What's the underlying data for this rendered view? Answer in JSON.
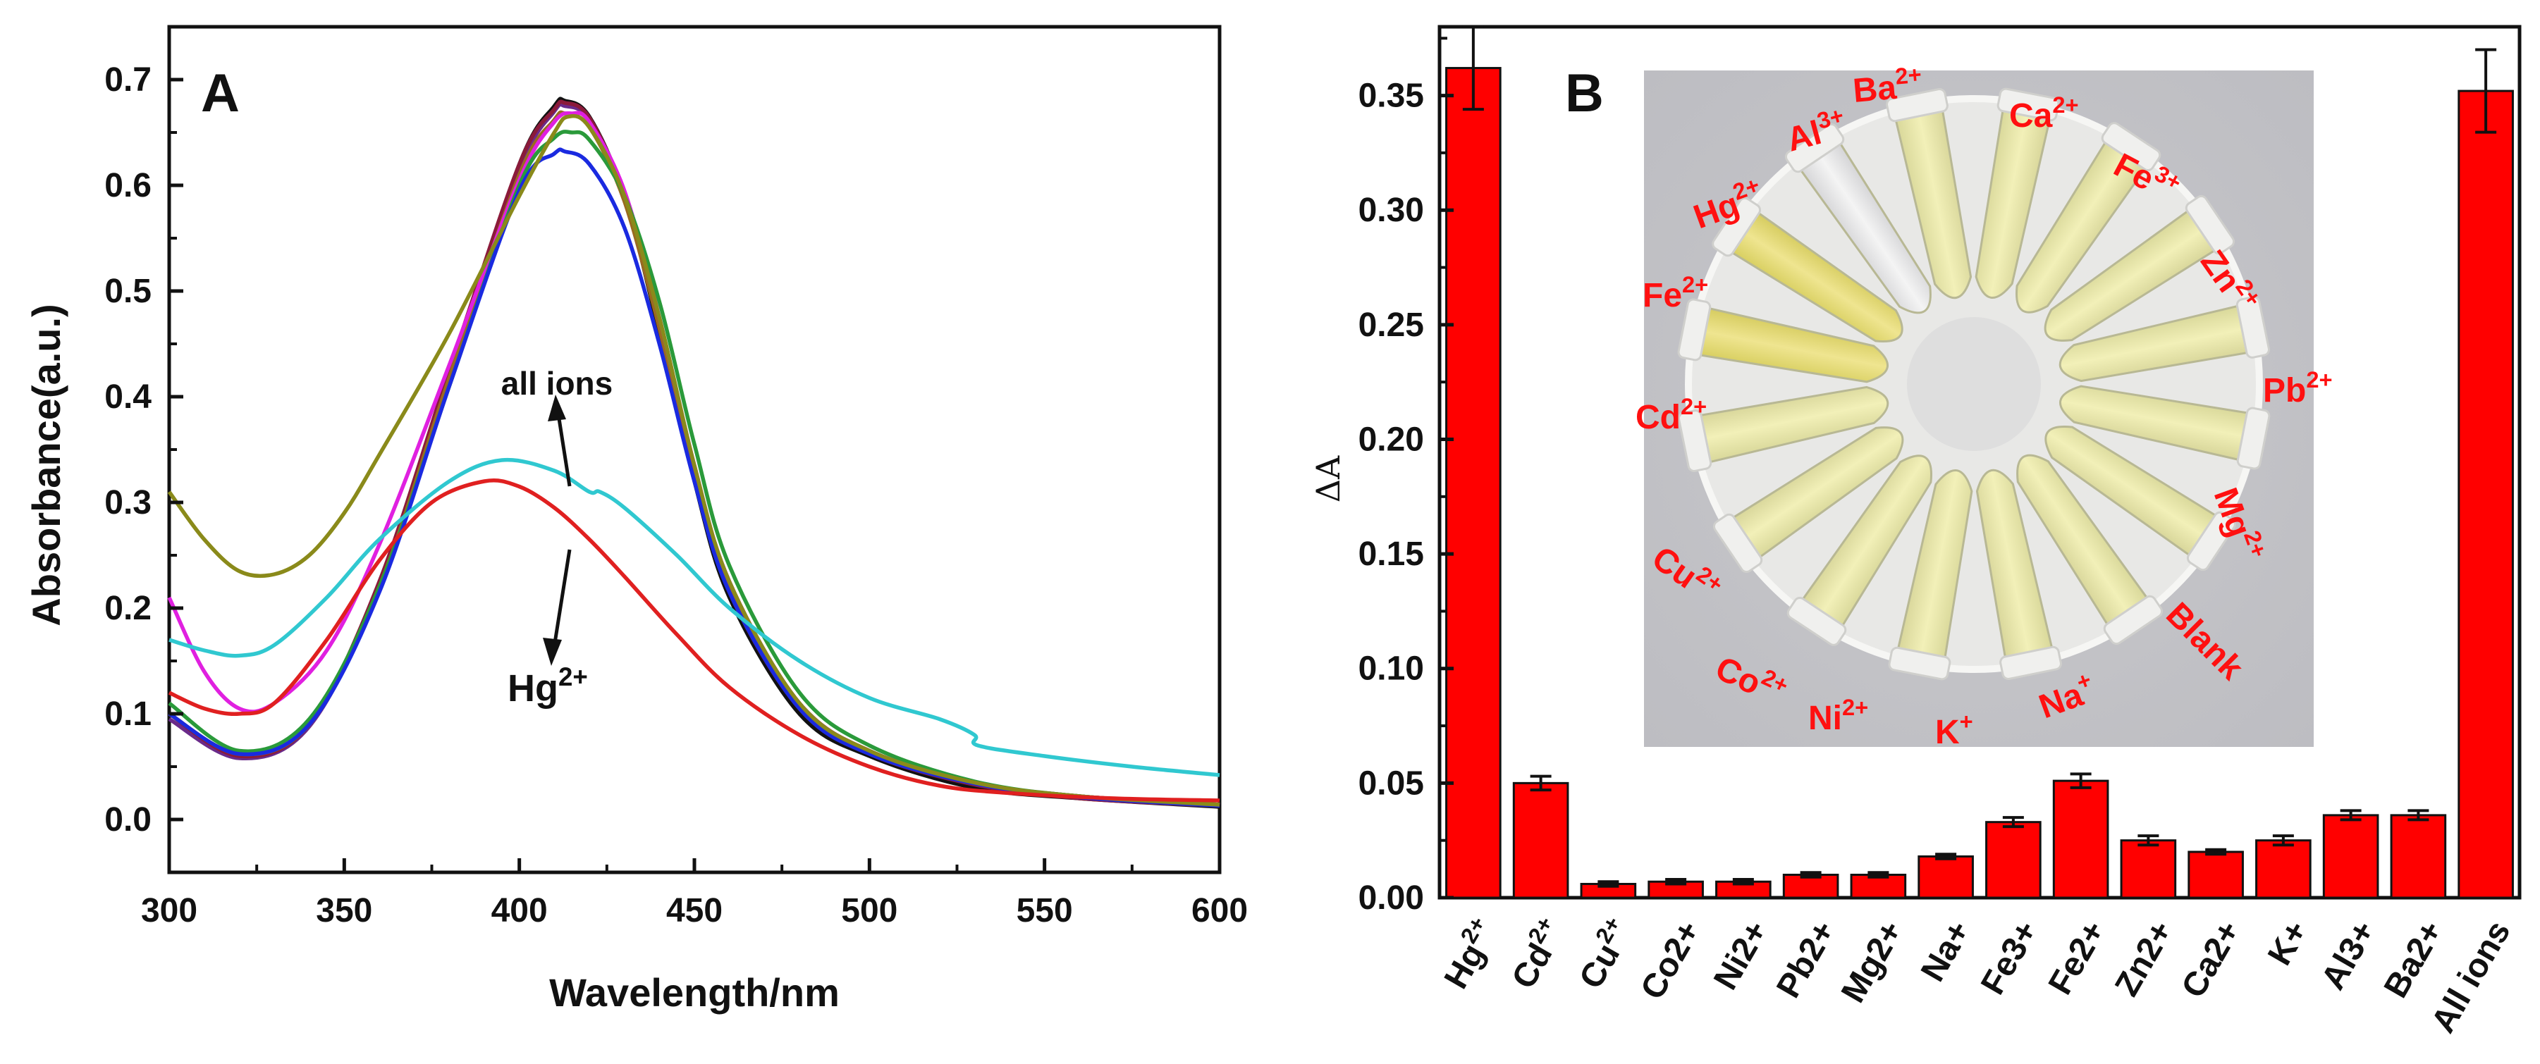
{
  "chart_data": [
    {
      "type": "line",
      "panel_label": "A",
      "xlabel": "Wavelength/nm",
      "ylabel": "Absorbance(a.u.)",
      "xlim": [
        300,
        600
      ],
      "ylim": [
        -0.05,
        0.75
      ],
      "xticks": [
        300,
        350,
        400,
        450,
        500,
        550,
        600
      ],
      "xtick_labels": [
        "300",
        "350",
        "400",
        "450",
        "500",
        "550",
        "600"
      ],
      "yticks": [
        0.0,
        0.1,
        0.2,
        0.3,
        0.4,
        0.5,
        0.6,
        0.7
      ],
      "ytick_labels": [
        "0.0",
        "0.1",
        "0.2",
        "0.3",
        "0.4",
        "0.5",
        "0.6",
        "0.7"
      ],
      "annotations": {
        "all_ions": "all ions",
        "hg_base": "Hg",
        "hg_sup": "2+"
      },
      "series": [
        {
          "name": "black",
          "color": "#111111",
          "x": [
            300,
            320,
            340,
            360,
            380,
            400,
            410,
            413,
            420,
            430,
            440,
            450,
            460,
            480,
            500,
            530,
            560,
            600
          ],
          "y": [
            0.1,
            0.06,
            0.09,
            0.22,
            0.42,
            0.62,
            0.675,
            0.68,
            0.665,
            0.59,
            0.46,
            0.32,
            0.21,
            0.1,
            0.06,
            0.03,
            0.02,
            0.012
          ]
        },
        {
          "name": "purple",
          "color": "#6a2a8a",
          "x": [
            300,
            320,
            340,
            360,
            380,
            400,
            410,
            413,
            420,
            430,
            440,
            450,
            460,
            480,
            500,
            530,
            560,
            600
          ],
          "y": [
            0.095,
            0.058,
            0.088,
            0.22,
            0.42,
            0.615,
            0.67,
            0.675,
            0.662,
            0.59,
            0.47,
            0.33,
            0.22,
            0.11,
            0.065,
            0.035,
            0.022,
            0.014
          ]
        },
        {
          "name": "dark-red",
          "color": "#8b1a3a",
          "x": [
            300,
            320,
            340,
            360,
            380,
            400,
            410,
            413,
            420,
            430,
            440,
            450,
            460,
            480,
            500,
            530,
            560,
            600
          ],
          "y": [
            0.1,
            0.06,
            0.09,
            0.225,
            0.425,
            0.62,
            0.672,
            0.678,
            0.664,
            0.59,
            0.465,
            0.325,
            0.215,
            0.105,
            0.062,
            0.033,
            0.02,
            0.013
          ]
        },
        {
          "name": "brown",
          "color": "#9a6a20",
          "x": [
            300,
            320,
            340,
            360,
            380,
            400,
            410,
            413,
            420,
            430,
            440,
            450,
            460,
            480,
            500,
            530,
            560,
            600
          ],
          "y": [
            0.1,
            0.062,
            0.09,
            0.22,
            0.418,
            0.61,
            0.662,
            0.668,
            0.655,
            0.585,
            0.465,
            0.33,
            0.22,
            0.11,
            0.065,
            0.035,
            0.022,
            0.014
          ]
        },
        {
          "name": "magenta",
          "color": "#e020e0",
          "x": [
            300,
            310,
            320,
            330,
            345,
            360,
            380,
            400,
            410,
            415,
            420,
            430,
            440,
            450,
            460,
            480,
            500,
            530,
            560,
            600
          ],
          "y": [
            0.21,
            0.14,
            0.105,
            0.11,
            0.16,
            0.26,
            0.43,
            0.605,
            0.66,
            0.668,
            0.66,
            0.595,
            0.475,
            0.335,
            0.225,
            0.11,
            0.065,
            0.035,
            0.022,
            0.014
          ]
        },
        {
          "name": "green",
          "color": "#2a9a3a",
          "x": [
            300,
            320,
            340,
            360,
            380,
            400,
            410,
            415,
            420,
            430,
            440,
            450,
            460,
            480,
            500,
            530,
            560,
            600
          ],
          "y": [
            0.11,
            0.065,
            0.095,
            0.22,
            0.41,
            0.6,
            0.645,
            0.65,
            0.643,
            0.59,
            0.49,
            0.355,
            0.24,
            0.12,
            0.07,
            0.036,
            0.022,
            0.014
          ]
        },
        {
          "name": "blue",
          "color": "#1a2ae0",
          "x": [
            300,
            320,
            340,
            360,
            380,
            400,
            410,
            413,
            420,
            430,
            440,
            450,
            460,
            480,
            500,
            530,
            560,
            600
          ],
          "y": [
            0.1,
            0.062,
            0.09,
            0.215,
            0.41,
            0.595,
            0.63,
            0.632,
            0.62,
            0.56,
            0.45,
            0.32,
            0.215,
            0.105,
            0.062,
            0.034,
            0.021,
            0.013
          ]
        },
        {
          "name": "olive",
          "color": "#8a8a1a",
          "x": [
            300,
            310,
            320,
            330,
            340,
            350,
            360,
            380,
            400,
            410,
            414,
            420,
            430,
            440,
            450,
            460,
            480,
            500,
            530,
            560,
            600
          ],
          "y": [
            0.31,
            0.265,
            0.235,
            0.232,
            0.25,
            0.29,
            0.345,
            0.46,
            0.59,
            0.65,
            0.665,
            0.655,
            0.59,
            0.475,
            0.335,
            0.225,
            0.11,
            0.065,
            0.035,
            0.022,
            0.014
          ]
        },
        {
          "name": "cyan (all ions)",
          "color": "#30c8d0",
          "x": [
            300,
            310,
            320,
            330,
            345,
            360,
            380,
            395,
            410,
            420,
            423,
            430,
            445,
            460,
            480,
            500,
            520,
            530,
            531,
            550,
            575,
            600
          ],
          "y": [
            0.17,
            0.16,
            0.155,
            0.165,
            0.21,
            0.265,
            0.32,
            0.34,
            0.33,
            0.31,
            0.31,
            0.295,
            0.25,
            0.2,
            0.15,
            0.115,
            0.095,
            0.08,
            0.07,
            0.06,
            0.05,
            0.042
          ]
        },
        {
          "name": "red (Hg2+)",
          "color": "#e02020",
          "x": [
            300,
            310,
            320,
            330,
            345,
            360,
            375,
            390,
            400,
            410,
            420,
            430,
            445,
            460,
            480,
            500,
            520,
            540,
            570,
            600
          ],
          "y": [
            0.12,
            0.105,
            0.1,
            0.11,
            0.17,
            0.245,
            0.3,
            0.32,
            0.315,
            0.295,
            0.265,
            0.23,
            0.175,
            0.125,
            0.08,
            0.05,
            0.032,
            0.025,
            0.02,
            0.018
          ]
        }
      ]
    },
    {
      "type": "bar",
      "panel_label": "B",
      "ylabel": "ΔA",
      "ylim": [
        0,
        0.38
      ],
      "yticks": [
        0.0,
        0.05,
        0.1,
        0.15,
        0.2,
        0.25,
        0.3,
        0.35
      ],
      "ytick_labels": [
        "0.00",
        "0.05",
        "0.10",
        "0.15",
        "0.20",
        "0.25",
        "0.30",
        "0.35"
      ],
      "bar_color": "#ff0000",
      "categories": [
        {
          "base": "Hg",
          "sup": "2+"
        },
        {
          "base": "Cd",
          "sup": "2+"
        },
        {
          "base": "Cu",
          "sup": "2+"
        },
        {
          "base": "Co2+",
          "sup": ""
        },
        {
          "base": "Ni2+",
          "sup": ""
        },
        {
          "base": "Pb2+",
          "sup": ""
        },
        {
          "base": "Mg2+",
          "sup": ""
        },
        {
          "base": "Na+",
          "sup": ""
        },
        {
          "base": "Fe3+",
          "sup": ""
        },
        {
          "base": "Fe2+",
          "sup": ""
        },
        {
          "base": "Zn2+",
          "sup": ""
        },
        {
          "base": "Ca2+",
          "sup": ""
        },
        {
          "base": "K+",
          "sup": ""
        },
        {
          "base": "Al3+",
          "sup": ""
        },
        {
          "base": "Ba2+",
          "sup": ""
        },
        {
          "base": "All ions",
          "sup": ""
        }
      ],
      "values": [
        0.362,
        0.05,
        0.006,
        0.007,
        0.007,
        0.01,
        0.01,
        0.018,
        0.033,
        0.051,
        0.025,
        0.02,
        0.025,
        0.036,
        0.036,
        0.352
      ],
      "errors": [
        0.018,
        0.003,
        0.001,
        0.001,
        0.001,
        0.001,
        0.001,
        0.001,
        0.002,
        0.003,
        0.002,
        0.001,
        0.002,
        0.002,
        0.002,
        0.018
      ],
      "inset_photo": {
        "description_labels": [
          {
            "base": "Ba",
            "sup": "2+"
          },
          {
            "base": "Ca",
            "sup": "2+"
          },
          {
            "base": "Fe",
            "sup": "3+"
          },
          {
            "base": "Zn",
            "sup": "2+"
          },
          {
            "base": "Pb",
            "sup": "2+"
          },
          {
            "base": "Mg",
            "sup": "2+"
          },
          {
            "base": "Blank",
            "sup": ""
          },
          {
            "base": "Na",
            "sup": "+"
          },
          {
            "base": "K",
            "sup": "+"
          },
          {
            "base": "Ni",
            "sup": "2+"
          },
          {
            "base": "Co",
            "sup": "2+"
          },
          {
            "base": "Cu",
            "sup": "2+"
          },
          {
            "base": "Cd",
            "sup": "2+"
          },
          {
            "base": "Fe",
            "sup": "2+"
          },
          {
            "base": "Hg",
            "sup": "2+"
          },
          {
            "base": "Al",
            "sup": "3+"
          }
        ]
      }
    }
  ]
}
